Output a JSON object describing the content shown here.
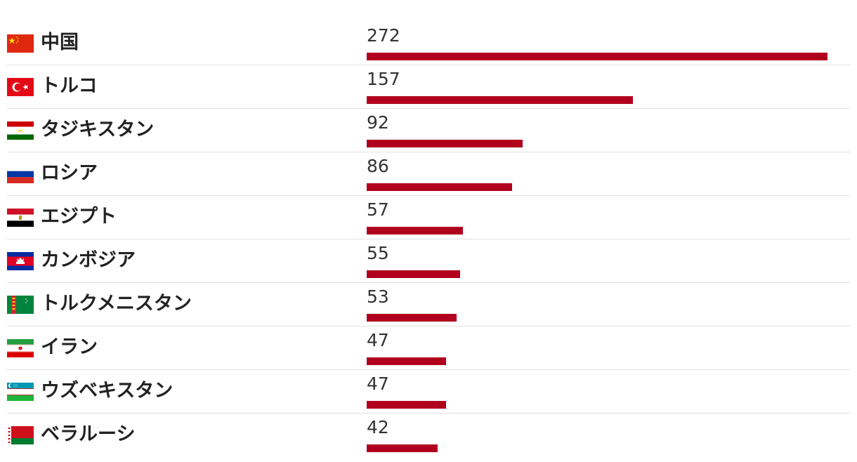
{
  "chart_data": {
    "type": "bar",
    "orientation": "horizontal",
    "title": "",
    "xlabel": "",
    "ylabel": "",
    "categories": [
      "中国",
      "トルコ",
      "タジキスタン",
      "ロシア",
      "エジプト",
      "カンボジア",
      "トルクメニスタン",
      "イラン",
      "ウズベキスタン",
      "ベラルーシ"
    ],
    "values": [
      272,
      157,
      92,
      86,
      57,
      55,
      53,
      47,
      47,
      42
    ],
    "xlim": [
      0,
      272
    ],
    "bar_color": "#b0001e",
    "grid": false,
    "legend": "none",
    "flags": [
      "china-flag-icon",
      "turkey-flag-icon",
      "tajikistan-flag-icon",
      "russia-flag-icon",
      "egypt-flag-icon",
      "cambodia-flag-icon",
      "turkmenistan-flag-icon",
      "iran-flag-icon",
      "uzbekistan-flag-icon",
      "belarus-flag-icon"
    ]
  }
}
